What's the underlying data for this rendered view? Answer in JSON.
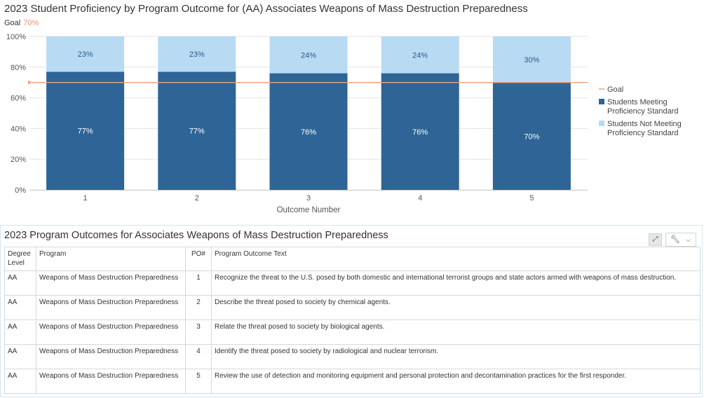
{
  "chart_data": {
    "type": "bar",
    "stacked": true,
    "title": "2023 Student Proficiency by Program Outcome for (AA) Associates Weapons of Mass Destruction Preparedness",
    "goal_caption": "Goal",
    "goal_value_label": "70%",
    "goal": 70,
    "categories": [
      "1",
      "2",
      "3",
      "4",
      "5"
    ],
    "xlabel": "Outcome Number",
    "ylabel": "",
    "ylim": [
      0,
      100
    ],
    "yticks": [
      "0%",
      "20%",
      "40%",
      "60%",
      "80%",
      "100%"
    ],
    "yticks_values": [
      0,
      20,
      40,
      60,
      80,
      100
    ],
    "grid": true,
    "legend_position": "right",
    "series": [
      {
        "name": "Students Meeting Proficiency Standard",
        "legend_lines": [
          "Students Meeting",
          "Proficiency Standard"
        ],
        "values": [
          77,
          77,
          76,
          76,
          70
        ],
        "labels": [
          "77%",
          "77%",
          "76%",
          "76%",
          "70%"
        ],
        "color": "#2e6596",
        "label_color": "#ffffff"
      },
      {
        "name": "Students Not Meeting Proficiency Standard",
        "legend_lines": [
          "Students Not Meeting",
          "Proficiency Standard"
        ],
        "values": [
          23,
          23,
          24,
          24,
          30
        ],
        "labels": [
          "23%",
          "23%",
          "24%",
          "24%",
          "30%"
        ],
        "color": "#b9daf3",
        "label_color": "#2a5a86"
      }
    ],
    "goal_legend": "Goal",
    "goal_color": "#f0a07a"
  },
  "table": {
    "title": "2023 Program Outcomes for Associates Weapons of Mass Destruction Preparedness",
    "headers": {
      "degree": "Degree Level",
      "program": "Program",
      "po": "PO#",
      "text": "Program Outcome Text"
    },
    "rows": [
      {
        "degree": "AA",
        "program": "Weapons of Mass Destruction Preparedness",
        "po": "1",
        "text": "Recognize the threat to the U.S. posed by both domestic and international terrorist groups and state actors armed with weapons of mass destruction."
      },
      {
        "degree": "AA",
        "program": "Weapons of Mass Destruction Preparedness",
        "po": "2",
        "text": "Describe the threat posed to society by chemical agents."
      },
      {
        "degree": "AA",
        "program": "Weapons of Mass Destruction Preparedness",
        "po": "3",
        "text": "Relate the threat posed to society by biological agents."
      },
      {
        "degree": "AA",
        "program": "Weapons of Mass Destruction Preparedness",
        "po": "4",
        "text": "Identify the threat posed to society by radiological and nuclear terrorism."
      },
      {
        "degree": "AA",
        "program": "Weapons of Mass Destruction Preparedness",
        "po": "5",
        "text": "Review the use of detection and monitoring equipment and personal protection and decontamination practices for the first responder."
      }
    ]
  },
  "icons": {
    "expand": "expand-icon",
    "tools": "wrench-icon",
    "chevron": "chevron-down-icon"
  }
}
